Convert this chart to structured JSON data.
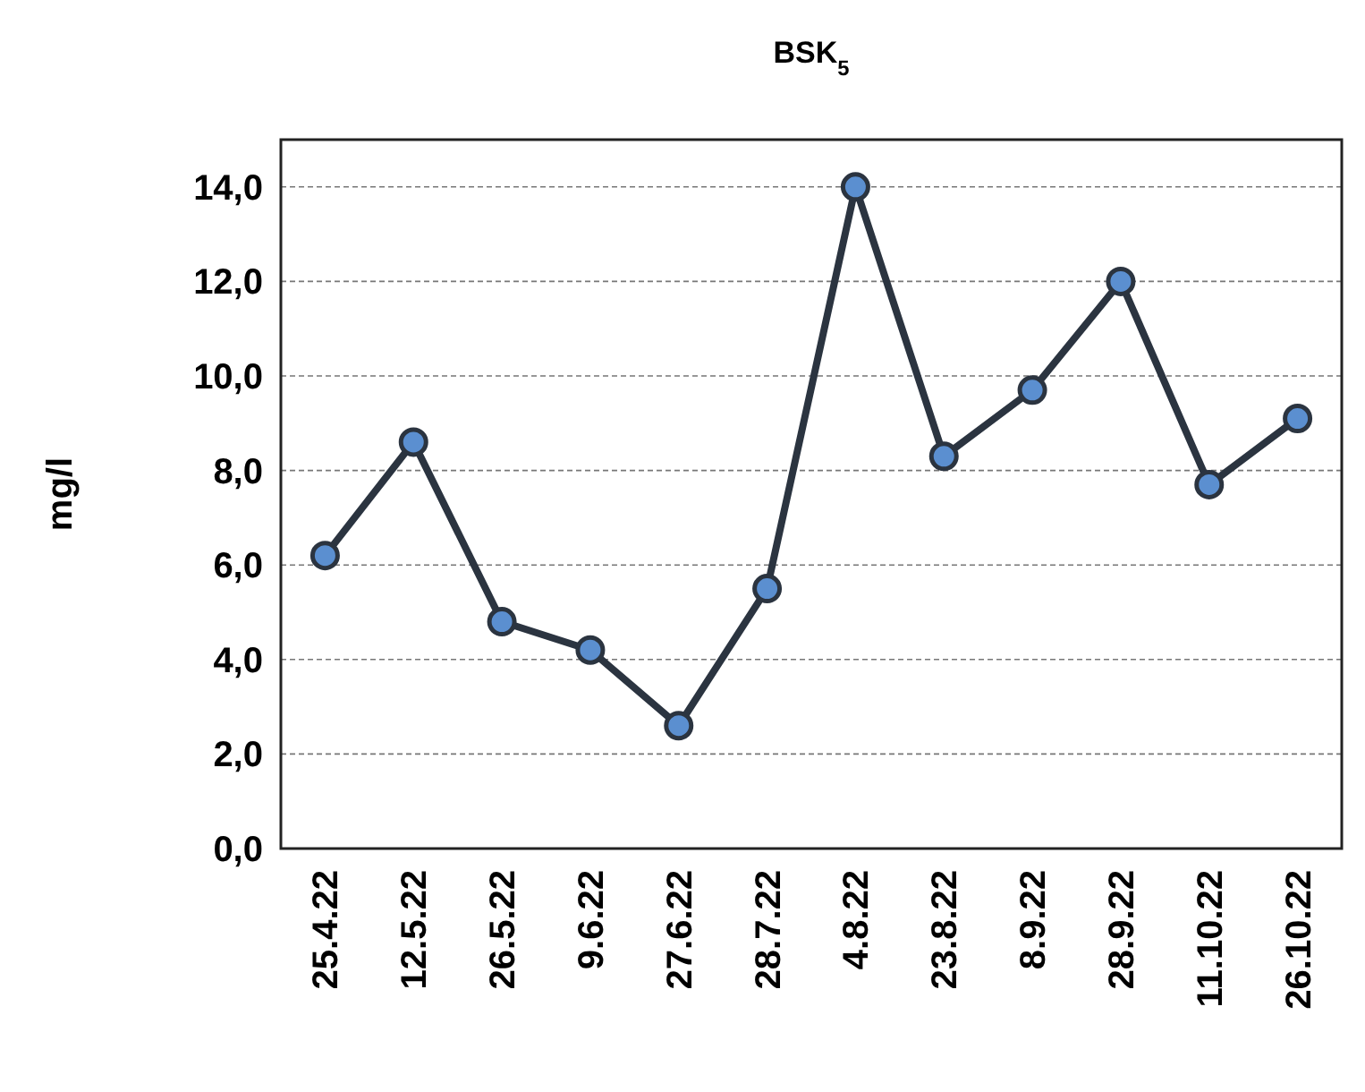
{
  "chart_data": {
    "type": "line",
    "title": "BSK$_{5}$",
    "ylabel": "mg/l",
    "categories": [
      "25.4.22",
      "12.5.22",
      "26.5.22",
      "9.6.22",
      "27.6.22",
      "28.7.22",
      "4.8.22",
      "23.8.22",
      "8.9.22",
      "28.9.22",
      "11.10.22",
      "26.10.22"
    ],
    "series": [
      {
        "color": "#2b3440",
        "values": [
          6.2,
          8.6,
          4.8,
          4.2,
          2.6,
          5.5,
          14.0,
          8.3,
          9.7,
          12.0,
          7.7,
          9.1
        ]
      }
    ],
    "ylim": [
      0,
      15
    ],
    "yticks": [
      {
        "value": 0,
        "label": "0,0"
      },
      {
        "value": 2,
        "label": "2,0"
      },
      {
        "value": 4,
        "label": "4,0"
      },
      {
        "value": 6,
        "label": "6,0"
      },
      {
        "value": 8,
        "label": "8,0"
      },
      {
        "value": 10,
        "label": "10,0"
      },
      {
        "value": 12,
        "label": "12,0"
      },
      {
        "value": 14,
        "label": "14,0"
      }
    ],
    "grid": "y",
    "marker": "circle",
    "line_style": "solid"
  }
}
